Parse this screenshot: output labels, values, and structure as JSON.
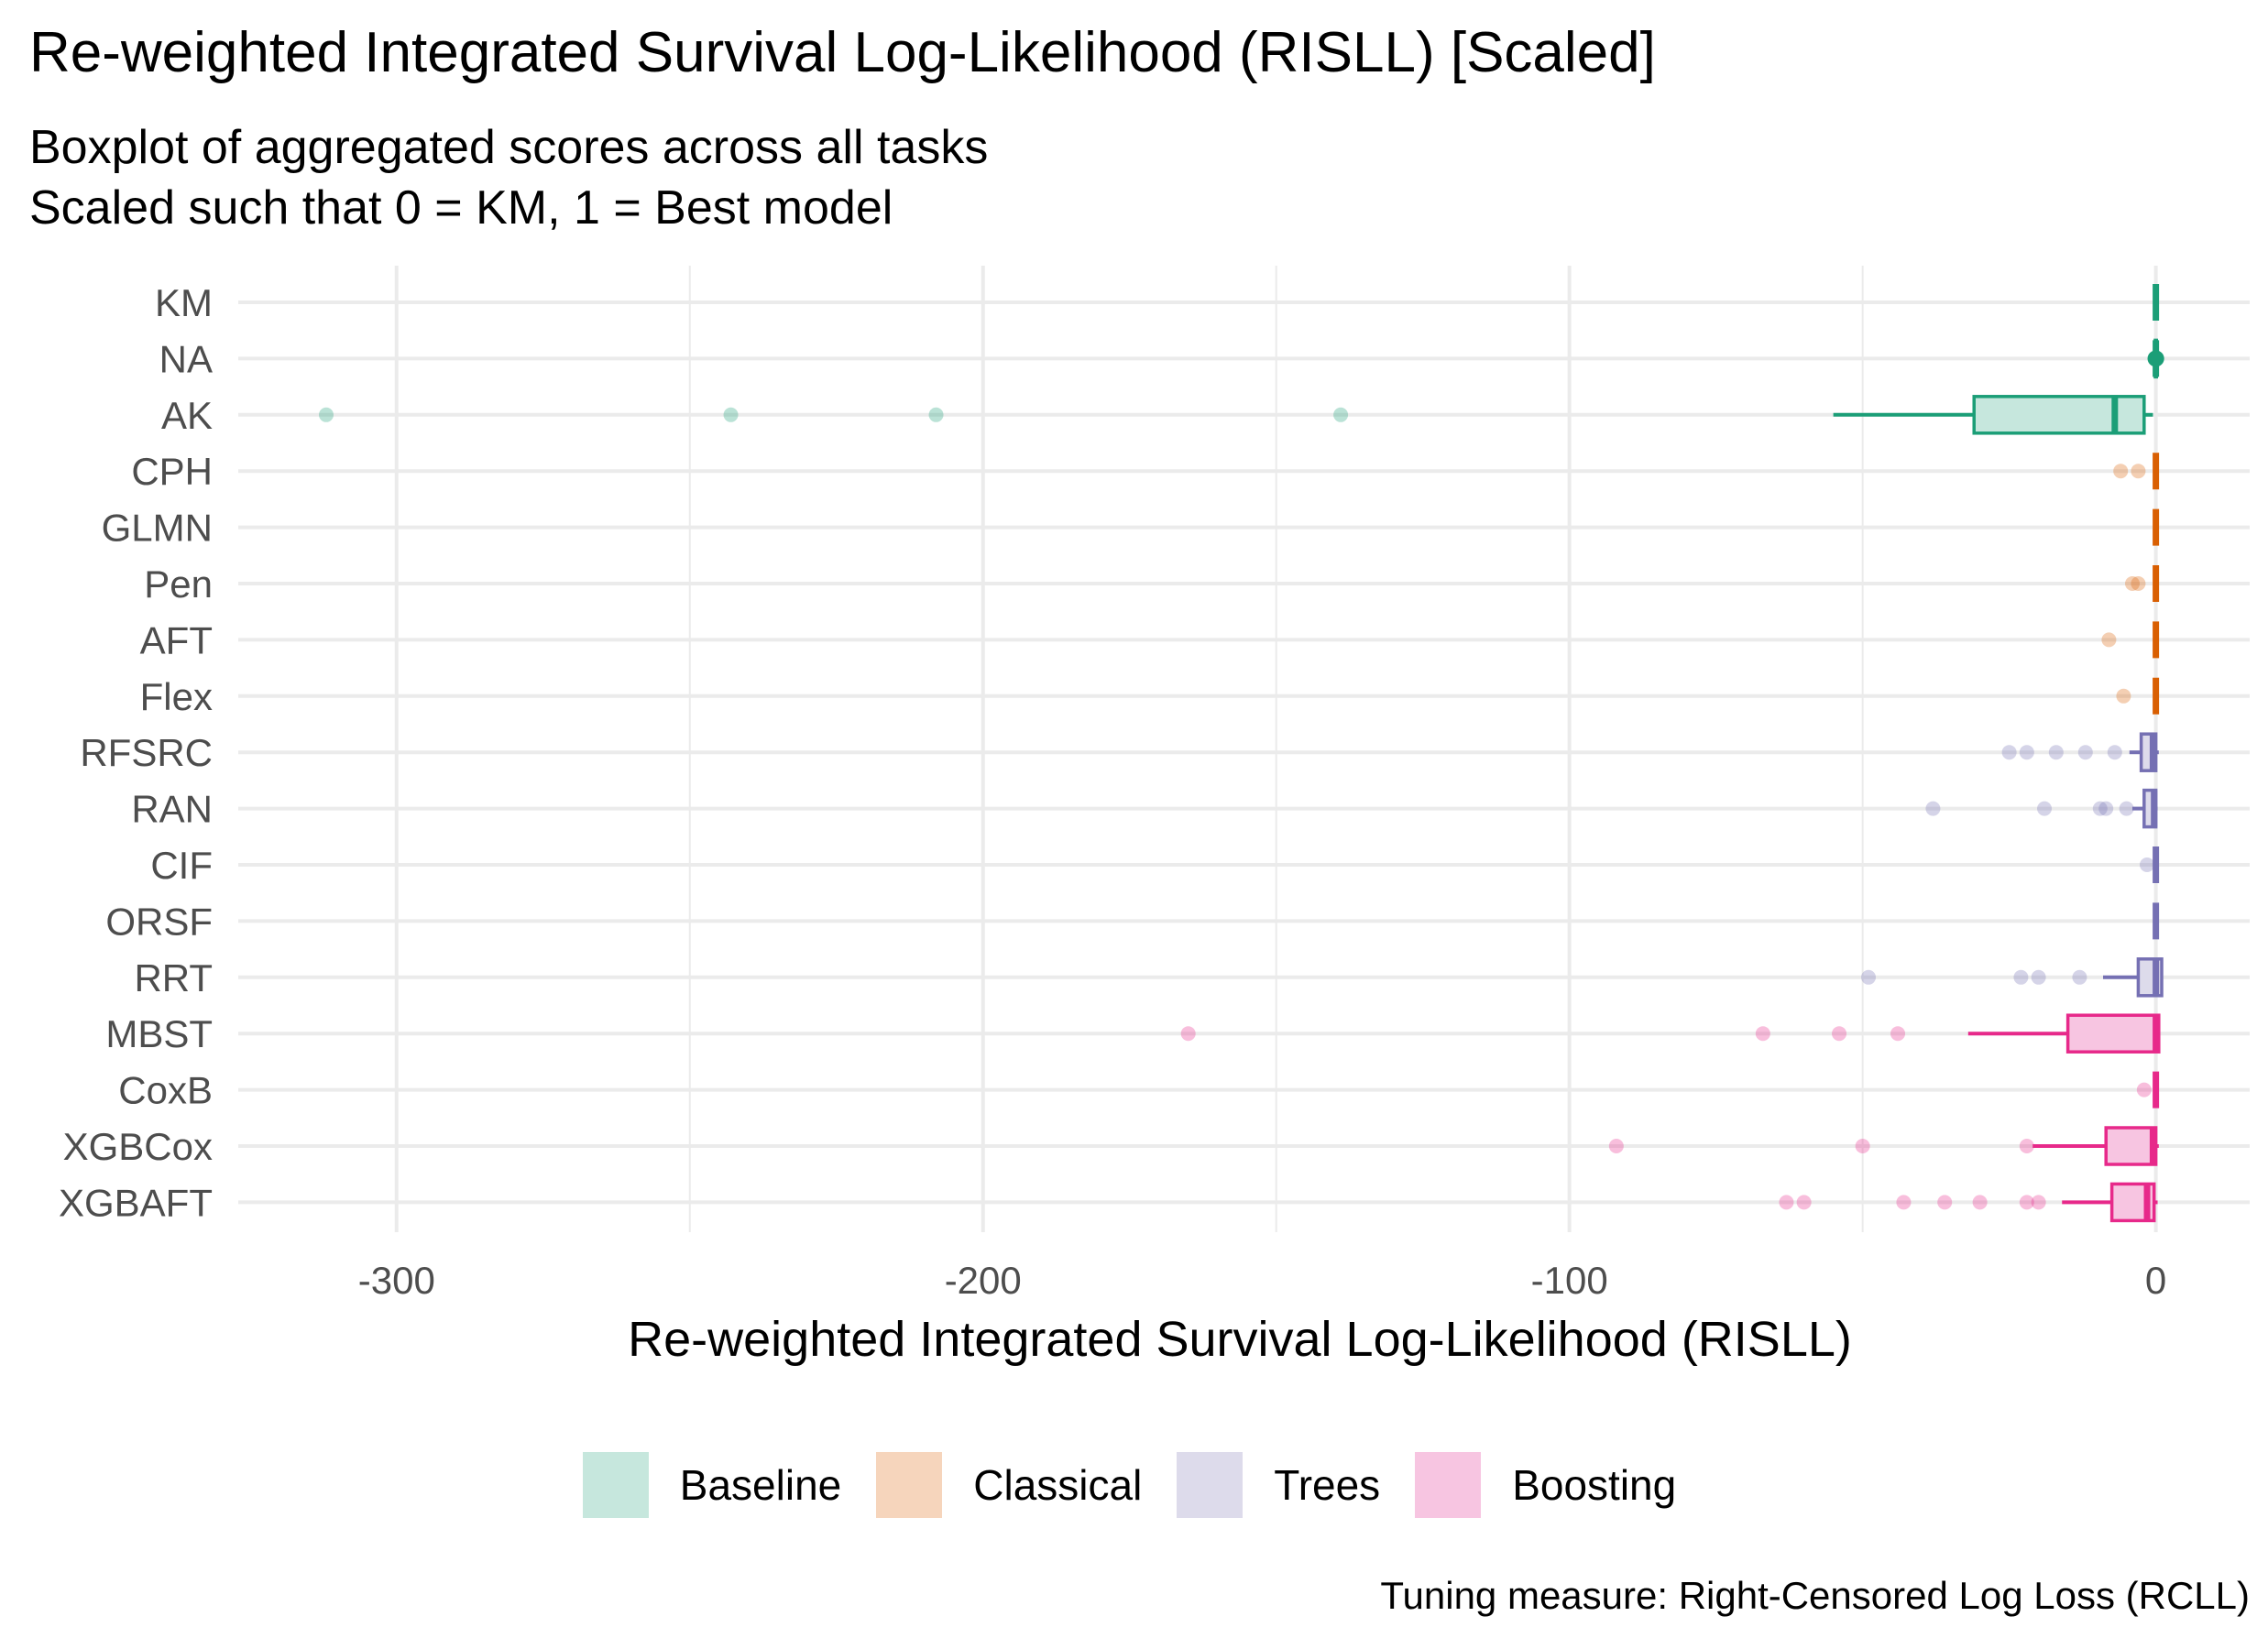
{
  "title": "Re-weighted Integrated Survival Log-Likelihood (RISLL) [Scaled]",
  "subtitle": [
    "Boxplot of aggregated scores across all tasks",
    "Scaled such that 0 = KM, 1 = Best model"
  ],
  "caption": "Tuning measure: Right-Censored Log Loss (RCLL)",
  "legend": [
    {
      "name": "Baseline",
      "fill": "#C6E7DD"
    },
    {
      "name": "Classical",
      "fill": "#F6D5BC"
    },
    {
      "name": "Trees",
      "fill": "#DDDBEB"
    },
    {
      "name": "Boosting",
      "fill": "#F7C5E1"
    }
  ],
  "group_colors": {
    "Baseline": "#1B9E77",
    "Classical": "#D95F02",
    "Trees": "#7570B3",
    "Boosting": "#E7298A"
  },
  "chart_data": {
    "type": "boxplot",
    "orientation": "horizontal",
    "xlabel": "Re-weighted Integrated Survival Log-Likelihood (RISLL)",
    "xlim": [
      -327,
      16
    ],
    "xticks": [
      -300,
      -200,
      -100,
      0
    ],
    "xtick_labels": [
      "-300",
      "-200",
      "-100",
      "0"
    ],
    "grid": true,
    "legend_position": "bottom",
    "categories": [
      "KM",
      "NA",
      "AK",
      "CPH",
      "GLMN",
      "Pen",
      "AFT",
      "Flex",
      "RFSRC",
      "RAN",
      "CIF",
      "ORSF",
      "RRT",
      "MBST",
      "CoxB",
      "XGBCox",
      "XGBAFT"
    ],
    "boxes": [
      {
        "name": "KM",
        "group": "Baseline",
        "whisker_low": 0,
        "q1": 0,
        "median": 0,
        "q3": 0,
        "whisker_high": 0,
        "outliers": []
      },
      {
        "name": "NA",
        "group": "Baseline",
        "whisker_low": -0.3,
        "q1": -0.1,
        "median": 0,
        "q3": 0.1,
        "whisker_high": 0.3,
        "outliers": [
          0.2,
          -0.2
        ]
      },
      {
        "name": "AK",
        "group": "Baseline",
        "whisker_low": -55,
        "q1": -31,
        "median": -7,
        "q3": -2,
        "whisker_high": -0.5,
        "outliers": [
          -312,
          -243,
          -208,
          -139
        ]
      },
      {
        "name": "CPH",
        "group": "Classical",
        "whisker_low": 0,
        "q1": 0,
        "median": 0,
        "q3": 0,
        "whisker_high": 0,
        "outliers": [
          -6,
          -3
        ]
      },
      {
        "name": "GLMN",
        "group": "Classical",
        "whisker_low": 0,
        "q1": 0,
        "median": 0,
        "q3": 0,
        "whisker_high": 0,
        "outliers": []
      },
      {
        "name": "Pen",
        "group": "Classical",
        "whisker_low": 0,
        "q1": 0,
        "median": 0,
        "q3": 0,
        "whisker_high": 0,
        "outliers": [
          -4,
          -3
        ]
      },
      {
        "name": "AFT",
        "group": "Classical",
        "whisker_low": 0,
        "q1": 0,
        "median": 0,
        "q3": 0,
        "whisker_high": 0,
        "outliers": [
          -8
        ]
      },
      {
        "name": "Flex",
        "group": "Classical",
        "whisker_low": 0,
        "q1": 0,
        "median": 0,
        "q3": 0,
        "whisker_high": 0,
        "outliers": [
          -5.5
        ]
      },
      {
        "name": "RFSRC",
        "group": "Trees",
        "whisker_low": -4.5,
        "q1": -2.5,
        "median": -0.5,
        "q3": 0,
        "whisker_high": 0.5,
        "outliers": [
          -25,
          -22,
          -17,
          -12,
          -7
        ]
      },
      {
        "name": "RAN",
        "group": "Trees",
        "whisker_low": -4,
        "q1": -2,
        "median": -0.3,
        "q3": 0,
        "whisker_high": 0.3,
        "outliers": [
          -38,
          -19,
          -9.5,
          -8.5,
          -5
        ]
      },
      {
        "name": "CIF",
        "group": "Trees",
        "whisker_low": 0,
        "q1": 0,
        "median": 0,
        "q3": 0,
        "whisker_high": 0,
        "outliers": [
          -1.5
        ]
      },
      {
        "name": "ORSF",
        "group": "Trees",
        "whisker_low": 0,
        "q1": 0,
        "median": 0,
        "q3": 0,
        "whisker_high": 0,
        "outliers": []
      },
      {
        "name": "RRT",
        "group": "Trees",
        "whisker_low": -9,
        "q1": -3,
        "median": 0,
        "q3": 1,
        "whisker_high": 1,
        "outliers": [
          -49,
          -23,
          -20,
          -13
        ]
      },
      {
        "name": "MBST",
        "group": "Boosting",
        "whisker_low": -32,
        "q1": -15,
        "median": 0,
        "q3": 0.5,
        "whisker_high": 0.5,
        "outliers": [
          -165,
          -67,
          -54,
          -44
        ]
      },
      {
        "name": "CoxB",
        "group": "Boosting",
        "whisker_low": 0,
        "q1": 0,
        "median": 0,
        "q3": 0,
        "whisker_high": 0,
        "outliers": [
          -2
        ]
      },
      {
        "name": "XGBCox",
        "group": "Boosting",
        "whisker_low": -21,
        "q1": -8.5,
        "median": -0.5,
        "q3": 0,
        "whisker_high": 0.5,
        "outliers": [
          -92,
          -50,
          -22
        ]
      },
      {
        "name": "XGBAFT",
        "group": "Boosting",
        "whisker_low": -16,
        "q1": -7.5,
        "median": -1.5,
        "q3": -0.3,
        "whisker_high": 0.3,
        "outliers": [
          -63,
          -60,
          -43,
          -36,
          -30,
          -22,
          -20
        ]
      }
    ]
  }
}
